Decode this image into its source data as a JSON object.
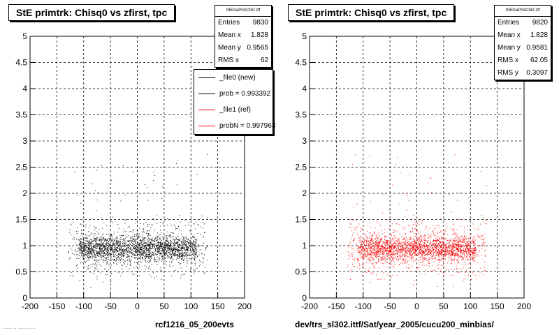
{
  "panels": [
    {
      "title": "StE primtrk: Chisq0 vs zfirst, tpc",
      "stats": {
        "name": "StEGaPrrkChi0 zff",
        "rows": [
          {
            "label": "Entries",
            "value": "9830"
          },
          {
            "label": "Mean x",
            "value": "1.828"
          },
          {
            "label": "Mean y",
            "value": "0.9565"
          },
          {
            "label": "RMS x",
            "value": "62"
          }
        ]
      },
      "legend": [
        {
          "label": "_file0 (new)",
          "color": "#000000"
        },
        {
          "label": "prob = 0.993392",
          "color": "#000000"
        },
        {
          "label": "_file1 (ref)",
          "color": "#ff0000"
        },
        {
          "label": "probN = 0.997963",
          "color": "#ff0000"
        }
      ],
      "footer": "rcf1216_05_200evts",
      "stamp": "....... .. ........ ....",
      "point_color": "#000000"
    },
    {
      "title": "StE primtrk: Chisq0 vs zfirst, tpc",
      "stats": {
        "name": "StEGaPrrkChi0 zff",
        "rows": [
          {
            "label": "Entries",
            "value": "9820"
          },
          {
            "label": "Mean x",
            "value": "1.828"
          },
          {
            "label": "Mean y",
            "value": "0.9581"
          },
          {
            "label": "RMS x",
            "value": "62.05"
          },
          {
            "label": "RMS y",
            "value": "0.3097"
          }
        ]
      },
      "footer": "dev/trs_sl302.ittf/Sat/year_2005/cucu200_minbias/",
      "point_color": "#ff0000"
    }
  ],
  "chart_data": [
    {
      "type": "scatter",
      "title": "StE primtrk: Chisq0 vs zfirst, tpc",
      "xlim": [
        -200,
        200
      ],
      "ylim": [
        0,
        5
      ],
      "x_ticks": [
        -200,
        -150,
        -100,
        -50,
        0,
        50,
        100,
        150,
        200
      ],
      "y_ticks": [
        0,
        0.5,
        1,
        1.5,
        2,
        2.5,
        3,
        3.5,
        4,
        4.5,
        5
      ],
      "grid": true,
      "series": [
        {
          "name": "_file0 (new)",
          "color": "#000000",
          "entries": 9830,
          "mean_x": 1.828,
          "mean_y": 0.9565,
          "rms_x": 62
        }
      ],
      "density": {
        "core_x_range": [
          -110,
          110
        ],
        "core_y_range": [
          0.6,
          1.3
        ],
        "sparse_x_range": [
          -130,
          130
        ],
        "sparse_y_range": [
          0.2,
          2.8
        ]
      }
    },
    {
      "type": "scatter",
      "title": "StE primtrk: Chisq0 vs zfirst, tpc",
      "xlim": [
        -200,
        200
      ],
      "ylim": [
        0,
        5
      ],
      "x_ticks": [
        -200,
        -150,
        -100,
        -50,
        0,
        50,
        100,
        150,
        200
      ],
      "y_ticks": [
        0,
        0.5,
        1,
        1.5,
        2,
        2.5,
        3,
        3.5,
        4,
        4.5,
        5
      ],
      "grid": true,
      "series": [
        {
          "name": "_file1 (ref)",
          "color": "#ff0000",
          "entries": 9820,
          "mean_x": 1.828,
          "mean_y": 0.9581,
          "rms_x": 62.05,
          "rms_y": 0.3097
        }
      ],
      "density": {
        "core_x_range": [
          -110,
          110
        ],
        "core_y_range": [
          0.6,
          1.3
        ],
        "sparse_x_range": [
          -130,
          130
        ],
        "sparse_y_range": [
          0.2,
          2.8
        ]
      }
    }
  ]
}
